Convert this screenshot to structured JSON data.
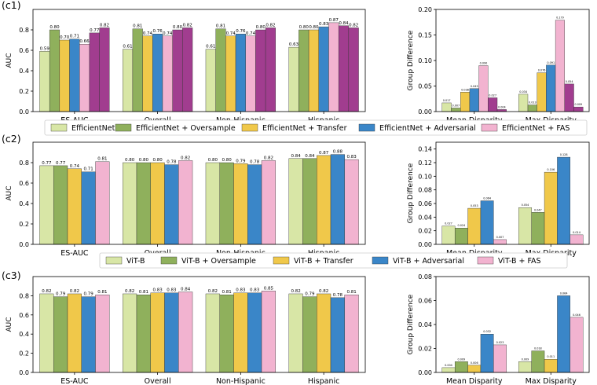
{
  "colors": {
    "c0": "#d8e6a6",
    "c1": "#8fb05c",
    "c2": "#f0c84a",
    "c3": "#3a86c8",
    "c4": "#f2b3d0",
    "c5": "#a13d8f"
  },
  "chart_data": [
    {
      "id": "c1-auc",
      "panel_label": "(c1)",
      "type": "bar",
      "ylabel": "AUC",
      "ylim": [
        0,
        1.0
      ],
      "yticks": [
        "0.0",
        "0.2",
        "0.4",
        "0.6",
        "0.8"
      ],
      "categories": [
        "ES-AUC",
        "Overall",
        "Non-Hispanic",
        "Hispanic"
      ],
      "series": [
        {
          "name": "EfficientNet",
          "color": "c0",
          "values": [
            0.59,
            0.61,
            0.61,
            0.63
          ],
          "labels": [
            "0.59",
            "0.61",
            "0.61",
            "0.63"
          ]
        },
        {
          "name": "EfficientNet + Oversample",
          "color": "c1",
          "values": [
            0.8,
            0.81,
            0.81,
            0.8
          ],
          "labels": [
            "0.80",
            "0.81",
            "0.81",
            "0.80"
          ]
        },
        {
          "name": "EfficientNet + Transfer",
          "color": "c2",
          "values": [
            0.7,
            0.74,
            0.74,
            0.8
          ],
          "labels": [
            "0.70",
            "0.74",
            "0.74",
            "0.80"
          ]
        },
        {
          "name": "EfficientNet + Adversarial",
          "color": "c3",
          "values": [
            0.71,
            0.76,
            0.76,
            0.83
          ],
          "labels": [
            "0.71",
            "0.76",
            "0.76",
            "0.83"
          ]
        },
        {
          "name": "EfficientNet + FAS",
          "color": "c4",
          "values": [
            0.66,
            0.74,
            0.74,
            0.87
          ],
          "labels": [
            "0.66",
            "0.74",
            "0.74",
            "0.87"
          ]
        },
        {
          "name": "",
          "color": "c5",
          "values": [
            0.77,
            0.8,
            0.8,
            0.84
          ],
          "labels": [
            "0.77",
            "0.80",
            "0.80",
            "0.84"
          ]
        },
        {
          "name": "",
          "color": "c5",
          "values": [
            0.82,
            0.82,
            0.82,
            0.82
          ],
          "labels": [
            "0.82",
            "0.82",
            "0.82",
            "0.82"
          ]
        }
      ]
    },
    {
      "id": "c1-gd",
      "type": "bar",
      "ylabel": "Group Difference",
      "ylim": [
        0,
        0.2
      ],
      "yticks": [
        "0.00",
        "0.05",
        "0.10",
        "0.15",
        "0.20"
      ],
      "categories": [
        "Mean Disparity",
        "Max Disparity"
      ],
      "series": [
        {
          "color": "c0",
          "values": [
            0.017,
            0.034
          ],
          "labels": [
            "0.017",
            "0.034"
          ]
        },
        {
          "color": "c1",
          "values": [
            0.007,
            0.013
          ],
          "labels": [
            "0.007",
            "0.013"
          ]
        },
        {
          "color": "c2",
          "values": [
            0.038,
            0.076
          ],
          "labels": [
            "0.038",
            "0.076"
          ]
        },
        {
          "color": "c3",
          "values": [
            0.045,
            0.091
          ],
          "labels": [
            "0.045",
            "0.091"
          ]
        },
        {
          "color": "c4",
          "values": [
            0.09,
            0.179
          ],
          "labels": [
            "0.090",
            "0.179"
          ]
        },
        {
          "color": "c5",
          "values": [
            0.027,
            0.054
          ],
          "labels": [
            "0.027",
            "0.054"
          ]
        },
        {
          "color": "c5",
          "values": [
            0.004,
            0.009
          ],
          "labels": [
            "0.004",
            "0.009"
          ]
        }
      ]
    },
    {
      "id": "c2-auc",
      "panel_label": "(c2)",
      "type": "bar",
      "ylabel": "AUC",
      "ylim": [
        0,
        1.0
      ],
      "yticks": [
        "0.0",
        "0.2",
        "0.4",
        "0.6",
        "0.8"
      ],
      "categories": [
        "ES-AUC",
        "Overall",
        "Non-Hispanic",
        "Hispanic"
      ],
      "series": [
        {
          "name": "ViT-B",
          "color": "c0",
          "values": [
            0.77,
            0.8,
            0.8,
            0.84
          ],
          "labels": [
            "0.77",
            "0.80",
            "0.80",
            "0.84"
          ]
        },
        {
          "name": "ViT-B + Oversample",
          "color": "c1",
          "values": [
            0.77,
            0.8,
            0.8,
            0.84
          ],
          "labels": [
            "0.77",
            "0.80",
            "0.80",
            "0.84"
          ]
        },
        {
          "name": "ViT-B + Transfer",
          "color": "c2",
          "values": [
            0.74,
            0.8,
            0.79,
            0.87
          ],
          "labels": [
            "0.74",
            "0.80",
            "0.79",
            "0.87"
          ]
        },
        {
          "name": "ViT-B + Adversarial",
          "color": "c3",
          "values": [
            0.71,
            0.78,
            0.78,
            0.88
          ],
          "labels": [
            "0.71",
            "0.78",
            "0.78",
            "0.88"
          ]
        },
        {
          "name": "ViT-B + FAS",
          "color": "c4",
          "values": [
            0.81,
            0.82,
            0.82,
            0.83
          ],
          "labels": [
            "0.81",
            "0.82",
            "0.82",
            "0.83"
          ]
        }
      ]
    },
    {
      "id": "c2-gd",
      "type": "bar",
      "ylabel": "Group Difference",
      "ylim": [
        0,
        0.15
      ],
      "yticks": [
        "0.00",
        "0.02",
        "0.04",
        "0.06",
        "0.08",
        "0.10",
        "0.12",
        "0.14"
      ],
      "categories": [
        "Mean Disparity",
        "Max Disparity"
      ],
      "series": [
        {
          "color": "c0",
          "values": [
            0.027,
            0.054
          ],
          "labels": [
            "0.027",
            "0.054"
          ]
        },
        {
          "color": "c1",
          "values": [
            0.024,
            0.047
          ],
          "labels": [
            "0.024",
            "0.047"
          ]
        },
        {
          "color": "c2",
          "values": [
            0.053,
            0.106
          ],
          "labels": [
            "0.053",
            "0.106"
          ]
        },
        {
          "color": "c3",
          "values": [
            0.064,
            0.128
          ],
          "labels": [
            "0.064",
            "0.128"
          ]
        },
        {
          "color": "c4",
          "values": [
            0.007,
            0.014
          ],
          "labels": [
            "0.007",
            "0.014"
          ]
        }
      ]
    },
    {
      "id": "c3-auc",
      "panel_label": "(c3)",
      "type": "bar",
      "ylabel": "AUC",
      "ylim": [
        0,
        1.0
      ],
      "yticks": [
        "0.0",
        "0.2",
        "0.4",
        "0.6",
        "0.8"
      ],
      "categories": [
        "ES-AUC",
        "Overall",
        "Non-Hispanic",
        "Hispanic"
      ],
      "series": [
        {
          "color": "c0",
          "values": [
            0.82,
            0.82,
            0.82,
            0.82
          ],
          "labels": [
            "0.82",
            "0.82",
            "0.82",
            "0.82"
          ]
        },
        {
          "color": "c1",
          "values": [
            0.79,
            0.81,
            0.81,
            0.79
          ],
          "labels": [
            "0.79",
            "0.81",
            "0.81",
            "0.79"
          ]
        },
        {
          "color": "c2",
          "values": [
            0.82,
            0.83,
            0.83,
            0.82
          ],
          "labels": [
            "0.82",
            "0.83",
            "0.83",
            "0.82"
          ]
        },
        {
          "color": "c3",
          "values": [
            0.79,
            0.83,
            0.83,
            0.78
          ],
          "labels": [
            "0.79",
            "0.83",
            "0.83",
            "0.78"
          ]
        },
        {
          "color": "c4",
          "values": [
            0.81,
            0.84,
            0.85,
            0.81
          ],
          "labels": [
            "0.81",
            "0.84",
            "0.85",
            "0.81"
          ]
        }
      ]
    },
    {
      "id": "c3-gd",
      "type": "bar",
      "ylabel": "Group Difference",
      "ylim": [
        0,
        0.08
      ],
      "yticks": [
        "0.00",
        "0.02",
        "0.04",
        "0.06",
        "0.08"
      ],
      "categories": [
        "Mean Disparity",
        "Max Disparity"
      ],
      "series": [
        {
          "color": "c0",
          "values": [
            0.004,
            0.009
          ],
          "labels": [
            "0.004",
            "0.009"
          ]
        },
        {
          "color": "c1",
          "values": [
            0.009,
            0.018
          ],
          "labels": [
            "0.009",
            "0.018"
          ]
        },
        {
          "color": "c2",
          "values": [
            0.006,
            0.011
          ],
          "labels": [
            "0.006",
            "0.011"
          ]
        },
        {
          "color": "c3",
          "values": [
            0.032,
            0.064
          ],
          "labels": [
            "0.032",
            "0.064"
          ]
        },
        {
          "color": "c4",
          "values": [
            0.023,
            0.046
          ],
          "labels": [
            "0.023",
            "0.046"
          ]
        }
      ]
    }
  ],
  "legends": [
    {
      "items": [
        {
          "label": "EfficientNet",
          "color": "c0"
        },
        {
          "label": "EfficientNet + Oversample",
          "color": "c1"
        },
        {
          "label": "EfficientNet + Transfer",
          "color": "c2"
        },
        {
          "label": "EfficientNet + Adversarial",
          "color": "c3"
        },
        {
          "label": "EfficientNet + FAS",
          "color": "c4"
        }
      ]
    },
    {
      "items": [
        {
          "label": "ViT-B",
          "color": "c0"
        },
        {
          "label": "ViT-B + Oversample",
          "color": "c1"
        },
        {
          "label": "ViT-B + Transfer",
          "color": "c2"
        },
        {
          "label": "ViT-B + Adversarial",
          "color": "c3"
        },
        {
          "label": "ViT-B + FAS",
          "color": "c4"
        }
      ]
    }
  ]
}
